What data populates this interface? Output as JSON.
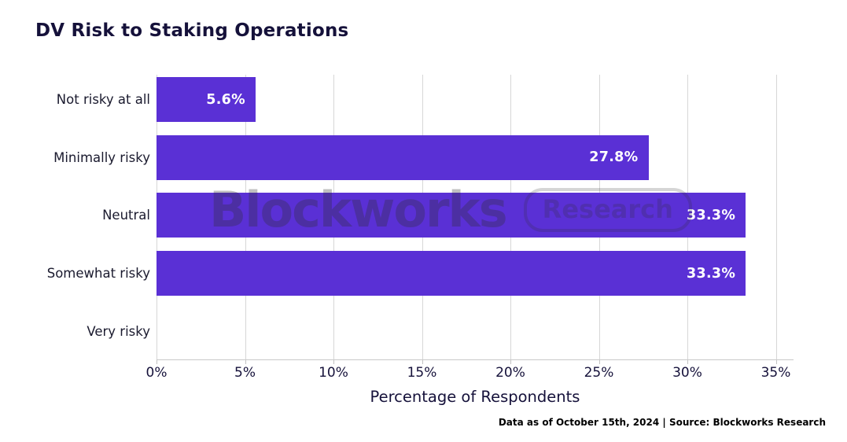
{
  "chart_data": {
    "type": "bar",
    "orientation": "horizontal",
    "title": "DV Risk to Staking Operations",
    "categories": [
      "Not risky at all",
      "Minimally risky",
      "Neutral",
      "Somewhat risky",
      "Very risky"
    ],
    "values": [
      5.6,
      27.8,
      33.3,
      33.3,
      0
    ],
    "value_labels": [
      "5.6%",
      "27.8%",
      "33.3%",
      "33.3%",
      ""
    ],
    "xlabel": "Percentage of Respondents",
    "ylabel": "",
    "xlim": [
      0,
      36
    ],
    "xticks": [
      0,
      5,
      10,
      15,
      20,
      25,
      30,
      35
    ],
    "xtick_suffix": "%",
    "grid": true,
    "legend_position": "none",
    "bar_color": "#5a30d5",
    "value_label_color": "#ffffff"
  },
  "watermark": {
    "brand": "Blockworks",
    "badge": "Research"
  },
  "footer": {
    "text": "Data as of October 15th, 2024 | Source: Blockworks Research"
  },
  "colors": {
    "accent": "#5a30d5",
    "title_text": "#15113a",
    "gridline": "#d7d7d7",
    "background": "#ffffff"
  }
}
